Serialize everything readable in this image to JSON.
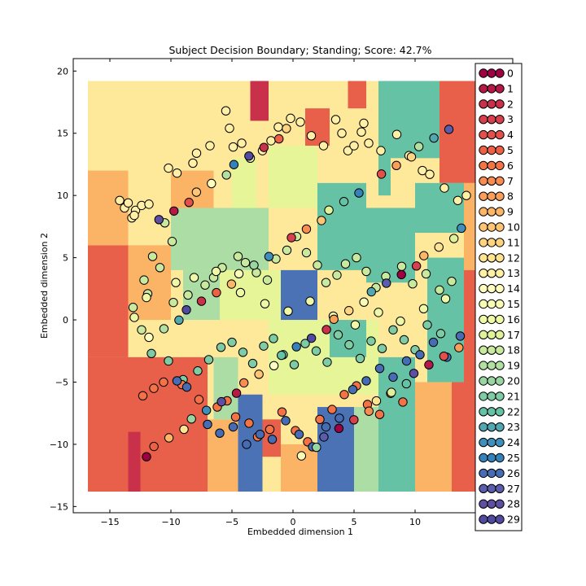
{
  "chart_data": {
    "type": "scatter",
    "title": "Subject Decision Boundary; Standing; Score: 42.7%",
    "xlabel": "Embedded dimension 1",
    "ylabel": "Embedded dimension 2",
    "xlim": [
      -18,
      18
    ],
    "ylim": [
      -15.5,
      21
    ],
    "xticks": [
      -15,
      -10,
      -5,
      0,
      5,
      10
    ],
    "yticks": [
      -15,
      -10,
      -5,
      0,
      5,
      10,
      15,
      20
    ],
    "xtick_labels": [
      "−15",
      "−10",
      "−5",
      "0",
      "5",
      "10"
    ],
    "ytick_labels": [
      "−15",
      "−10",
      "−5",
      "0",
      "5",
      "10",
      "15",
      "20"
    ],
    "background": "decision boundary regions (filled contour) spanning x −16.8 to 18, y −13.8 to 19.2",
    "colormap": "Spectral",
    "legend_position": "right",
    "legend_labels": [
      "0",
      "1",
      "2",
      "3",
      "4",
      "5",
      "6",
      "7",
      "8",
      "9",
      "10",
      "11",
      "12",
      "13",
      "14",
      "15",
      "16",
      "17",
      "18",
      "19",
      "20",
      "21",
      "22",
      "23",
      "24",
      "25",
      "26",
      "27",
      "28",
      "29"
    ],
    "class_colors": [
      "#9e0142",
      "#b41947",
      "#c9314b",
      "#d7414e",
      "#e1504a",
      "#ec6146",
      "#f47346",
      "#f88c51",
      "#fa9e5b",
      "#fdb567",
      "#fdc574",
      "#fed481",
      "#fee391",
      "#fff0a6",
      "#fffebe",
      "#f8fcb4",
      "#eff8a6",
      "#dff299",
      "#c9e99e",
      "#b2e0a2",
      "#99d6a4",
      "#7fcba4",
      "#66c2a5",
      "#53a7b0",
      "#3f8fbd",
      "#3582ba",
      "#466db3",
      "#5a5dab",
      "#5e4fa2",
      "#504ba0"
    ],
    "region_colors": {
      "deep_red": "#c9314b",
      "red_orange": "#e8604a",
      "orange": "#fbb466",
      "light_yellow": "#fee89a",
      "pale_yellow_green": "#e6f598",
      "light_green": "#abdda4",
      "teal": "#66c2a5",
      "blue": "#4a72b5"
    },
    "series": [
      {
        "x": [
          -14.2,
          -13.8,
          -13.2,
          -13.5,
          -12.9,
          -12.4,
          -13.0,
          -11.8,
          -10.2,
          -9.5,
          -8.2,
          -7.9,
          -6.8,
          -5.5,
          -5.2,
          -4.9,
          -4.2,
          -3.5,
          -2.5,
          -1.8,
          -1.2,
          -0.2,
          0.6,
          1.5,
          2.5,
          3.5,
          4.0,
          4.5,
          5.0,
          5.6,
          5.8,
          6.2,
          7.2,
          8.5,
          9.5,
          10.6,
          11.2,
          12.4,
          13.5,
          14.2
        ],
        "y": [
          9.6,
          9.0,
          8.2,
          9.4,
          8.8,
          9.2,
          8.4,
          9.3,
          12.2,
          11.8,
          12.6,
          13.4,
          14.0,
          16.8,
          15.4,
          13.9,
          14.2,
          13.0,
          13.6,
          14.4,
          15.5,
          16.2,
          15.9,
          14.8,
          14.0,
          16.1,
          15.0,
          13.6,
          14.0,
          15.1,
          15.8,
          14.2,
          13.6,
          14.9,
          13.2,
          12.0,
          11.7,
          10.6,
          9.6,
          10.0
        ]
      },
      {
        "x": [
          -10.5,
          -9.9,
          -11.5,
          -10.9,
          -12.2,
          -11.9,
          -13.1,
          -12.4,
          -9.8,
          -8.6,
          -7.2,
          -6.5,
          -5.8,
          -4.5,
          -3.9,
          -3.0,
          -2.1,
          -1.4,
          -0.5,
          0.3,
          1.1,
          2.0,
          2.7,
          3.6,
          4.3,
          5.2,
          6.0,
          6.8,
          7.6,
          8.9,
          9.8,
          10.9,
          12.0,
          13.0
        ],
        "y": [
          7.8,
          6.3,
          5.1,
          4.2,
          3.2,
          2.1,
          1.0,
          -0.8,
          1.4,
          2.0,
          2.8,
          3.4,
          4.2,
          5.1,
          4.6,
          3.8,
          3.2,
          4.9,
          5.6,
          6.7,
          5.4,
          4.4,
          3.0,
          3.6,
          4.5,
          5.0,
          3.9,
          2.6,
          3.5,
          4.3,
          2.9,
          3.7,
          2.4,
          3.1
        ]
      },
      {
        "x": [
          -11.6,
          -10.2,
          -9.0,
          -7.8,
          -6.9,
          -5.9,
          -5.0,
          -4.1,
          -3.3,
          -2.4,
          -1.6,
          -0.8,
          0.1,
          1.0,
          1.9,
          2.8,
          3.7,
          4.6,
          5.5,
          6.4,
          7.3,
          8.2,
          9.1,
          10.0,
          11.0,
          12.1
        ],
        "y": [
          -2.7,
          -3.3,
          -4.8,
          -4.1,
          -3.2,
          -2.2,
          -1.8,
          -2.6,
          -3.5,
          -2.1,
          -1.5,
          -2.8,
          -3.6,
          -1.9,
          -2.5,
          -3.4,
          -1.2,
          -2.0,
          -3.1,
          -1.7,
          -2.3,
          -0.8,
          -1.6,
          -2.4,
          -0.4,
          -1.1
        ]
      },
      {
        "x": [
          -12.3,
          -11.4,
          -10.6,
          -9.1,
          -7.7,
          -6.2,
          -5.4,
          -4.7,
          -3.6,
          -2.9,
          -1.9,
          -0.9,
          0.2,
          1.2,
          2.2,
          3.2,
          4.2,
          5.2,
          6.1,
          7.1,
          8.0,
          9.0
        ],
        "y": [
          -6.1,
          -5.5,
          -5.0,
          -5.2,
          -6.4,
          -7.0,
          -6.5,
          -7.8,
          -8.3,
          -9.4,
          -8.8,
          -7.4,
          -8.9,
          -9.8,
          -8.0,
          -7.2,
          -6.0,
          -5.3,
          -6.8,
          -7.6,
          -5.9,
          -6.6
        ]
      },
      {
        "x": [
          -9.5,
          -8.7,
          -7.0,
          -6.0,
          -4.9,
          -3.8,
          -2.7,
          -1.7,
          -0.6,
          0.5,
          1.6,
          2.7,
          3.8,
          4.9,
          6.0,
          7.1,
          8.2,
          9.3,
          10.4,
          11.5,
          12.6,
          13.7
        ],
        "y": [
          -4.9,
          -5.4,
          -8.4,
          -9.1,
          -8.6,
          -10.0,
          -9.2,
          -9.6,
          -8.1,
          -9.2,
          -10.2,
          -8.6,
          -7.9,
          -5.6,
          -4.9,
          -3.9,
          -4.6,
          -3.3,
          -2.8,
          -1.8,
          -3.0,
          -1.3
        ]
      },
      {
        "x": [
          -13.0,
          -12.0,
          -9.6,
          -8.1,
          -6.3,
          -4.3,
          -2.3,
          -0.4,
          1.4,
          3.3,
          5.1,
          7.0,
          8.8,
          10.7,
          12.5
        ],
        "y": [
          0.2,
          1.8,
          3.0,
          3.4,
          3.9,
          2.2,
          1.3,
          0.7,
          1.5,
          0.3,
          -0.4,
          0.6,
          -0.1,
          0.9,
          1.7
        ]
      }
    ],
    "series_classes": [
      13,
      18,
      21,
      6,
      26,
      16
    ],
    "extra_point_classes": [
      0,
      1,
      2,
      3,
      4,
      5,
      7,
      8,
      9,
      10,
      11,
      12,
      14,
      15,
      17,
      19,
      20,
      22,
      23,
      24,
      25,
      27,
      28,
      29
    ]
  }
}
